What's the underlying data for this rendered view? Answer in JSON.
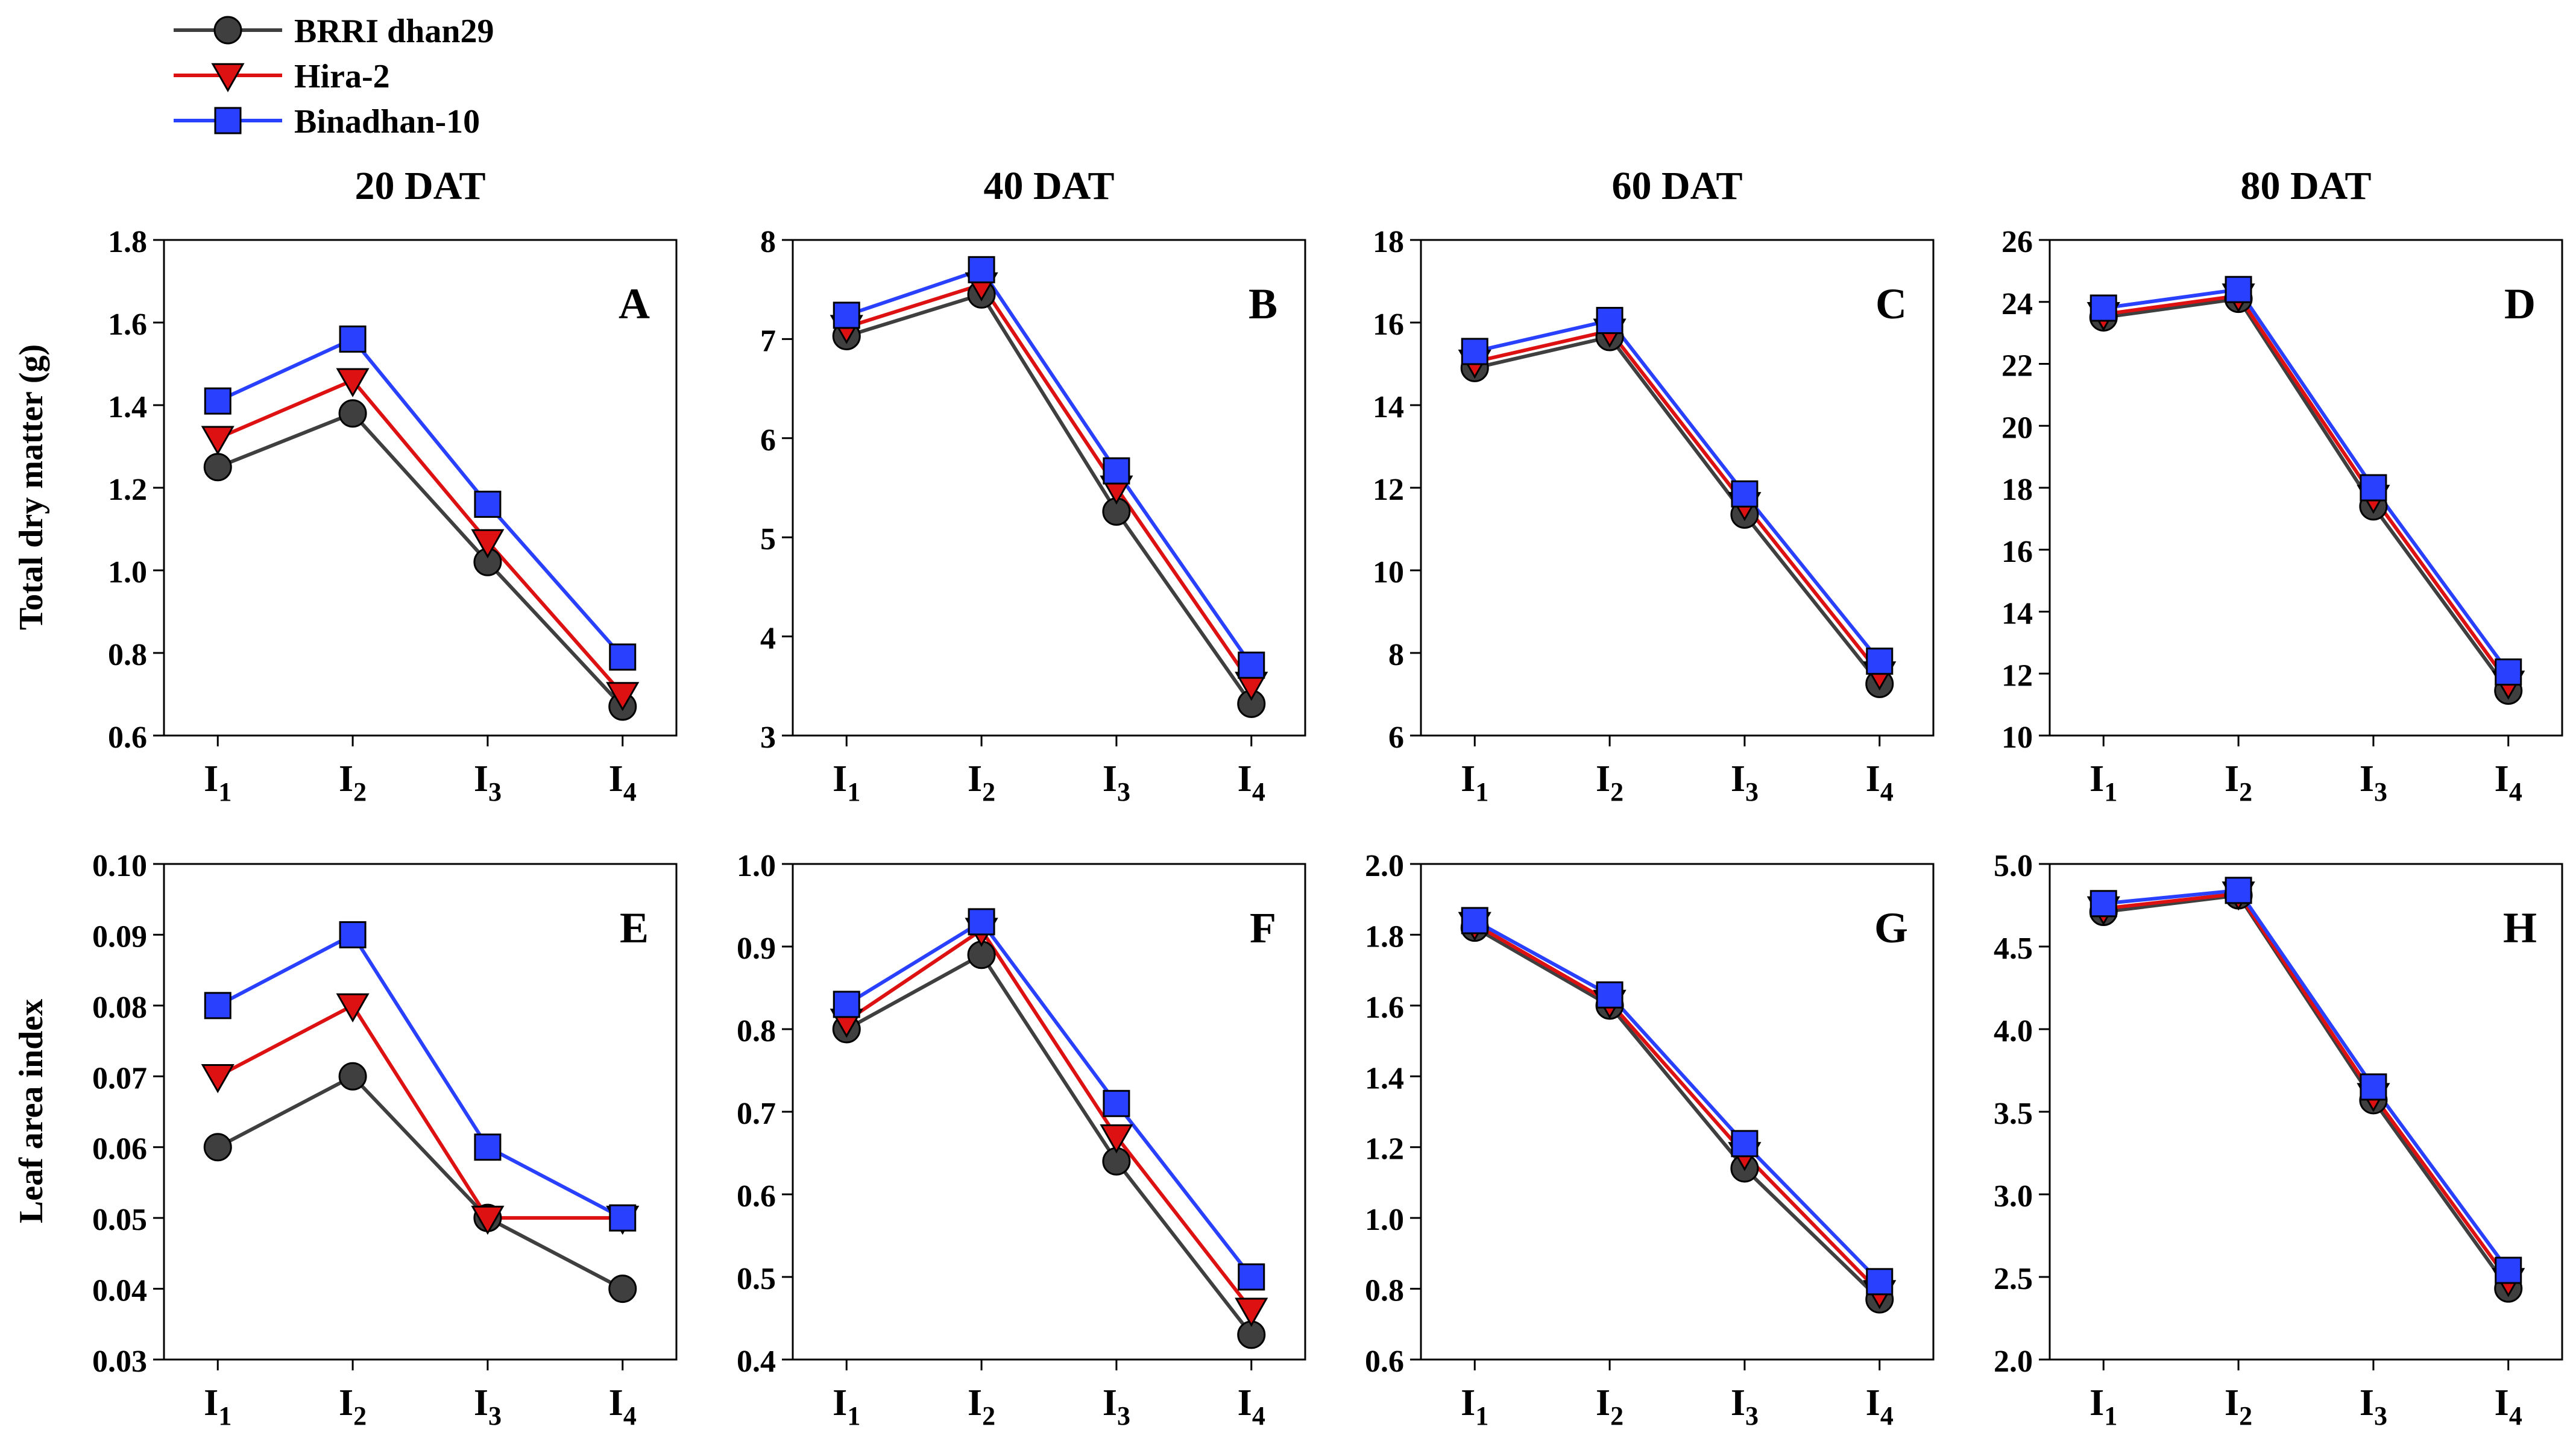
{
  "legend": {
    "entries": [
      {
        "name": "BRRI dhan29",
        "color": "#3f3f3f",
        "marker": "circle"
      },
      {
        "name": "Hira-2",
        "color": "#dd1111",
        "marker": "triangle-down"
      },
      {
        "name": "Binadhan-10",
        "color": "#2a40ff",
        "marker": "square"
      }
    ]
  },
  "column_titles": [
    "20 DAT",
    "40 DAT",
    "60 DAT",
    "80 DAT"
  ],
  "row_ylabels": [
    "Total dry matter (g)",
    "Leaf area index"
  ],
  "x_tick_labels": [
    {
      "base": "I",
      "sub": "1"
    },
    {
      "base": "I",
      "sub": "2"
    },
    {
      "base": "I",
      "sub": "3"
    },
    {
      "base": "I",
      "sub": "4"
    }
  ],
  "chart_data": [
    {
      "type": "line",
      "panel": "A",
      "title": "20 DAT",
      "ylabel": "Total dry matter (g)",
      "categories": [
        "I1",
        "I2",
        "I3",
        "I4"
      ],
      "ylim": [
        0.6,
        1.8
      ],
      "yticks": [
        "0.6",
        "0.8",
        "1.0",
        "1.2",
        "1.4",
        "1.6",
        "1.8"
      ],
      "series": [
        {
          "name": "BRRI dhan29",
          "values": [
            1.25,
            1.38,
            1.02,
            0.67
          ]
        },
        {
          "name": "Hira-2",
          "values": [
            1.32,
            1.46,
            1.07,
            0.7
          ]
        },
        {
          "name": "Binadhan-10",
          "values": [
            1.41,
            1.56,
            1.16,
            0.79
          ]
        }
      ]
    },
    {
      "type": "line",
      "panel": "B",
      "title": "40 DAT",
      "categories": [
        "I1",
        "I2",
        "I3",
        "I4"
      ],
      "ylim": [
        3,
        8
      ],
      "yticks": [
        "3",
        "4",
        "5",
        "6",
        "7",
        "8"
      ],
      "series": [
        {
          "name": "BRRI dhan29",
          "values": [
            7.03,
            7.45,
            5.26,
            3.32
          ]
        },
        {
          "name": "Hira-2",
          "values": [
            7.12,
            7.55,
            5.5,
            3.52
          ]
        },
        {
          "name": "Binadhan-10",
          "values": [
            7.24,
            7.7,
            5.67,
            3.71
          ]
        }
      ]
    },
    {
      "type": "line",
      "panel": "C",
      "title": "60 DAT",
      "categories": [
        "I1",
        "I2",
        "I3",
        "I4"
      ],
      "ylim": [
        6,
        18
      ],
      "yticks": [
        "6",
        "8",
        "10",
        "12",
        "14",
        "16",
        "18"
      ],
      "series": [
        {
          "name": "BRRI dhan29",
          "values": [
            14.9,
            15.65,
            11.35,
            7.25
          ]
        },
        {
          "name": "Hira-2",
          "values": [
            15.05,
            15.8,
            11.6,
            7.5
          ]
        },
        {
          "name": "Binadhan-10",
          "values": [
            15.3,
            16.05,
            11.85,
            7.8
          ]
        }
      ]
    },
    {
      "type": "line",
      "panel": "D",
      "title": "80 DAT",
      "categories": [
        "I1",
        "I2",
        "I3",
        "I4"
      ],
      "ylim": [
        10,
        26
      ],
      "yticks": [
        "10",
        "12",
        "14",
        "16",
        "18",
        "20",
        "22",
        "24",
        "26"
      ],
      "series": [
        {
          "name": "BRRI dhan29",
          "values": [
            23.5,
            24.1,
            17.4,
            11.45
          ]
        },
        {
          "name": "Hira-2",
          "values": [
            23.6,
            24.2,
            17.7,
            11.7
          ]
        },
        {
          "name": "Binadhan-10",
          "values": [
            23.8,
            24.4,
            18.0,
            12.05
          ]
        }
      ]
    },
    {
      "type": "line",
      "panel": "E",
      "ylabel": "Leaf area index",
      "categories": [
        "I1",
        "I2",
        "I3",
        "I4"
      ],
      "ylim": [
        0.03,
        0.1
      ],
      "yticks": [
        "0.03",
        "0.04",
        "0.05",
        "0.06",
        "0.07",
        "0.08",
        "0.09",
        "0.10"
      ],
      "series": [
        {
          "name": "BRRI dhan29",
          "values": [
            0.06,
            0.07,
            0.05,
            0.04
          ]
        },
        {
          "name": "Hira-2",
          "values": [
            0.07,
            0.08,
            0.05,
            0.05
          ]
        },
        {
          "name": "Binadhan-10",
          "values": [
            0.08,
            0.09,
            0.06,
            0.05
          ]
        }
      ]
    },
    {
      "type": "line",
      "panel": "F",
      "categories": [
        "I1",
        "I2",
        "I3",
        "I4"
      ],
      "ylim": [
        0.4,
        1.0
      ],
      "yticks": [
        "0.4",
        "0.5",
        "0.6",
        "0.7",
        "0.8",
        "0.9",
        "1.0"
      ],
      "series": [
        {
          "name": "BRRI dhan29",
          "values": [
            0.8,
            0.89,
            0.64,
            0.43
          ]
        },
        {
          "name": "Hira-2",
          "values": [
            0.81,
            0.92,
            0.67,
            0.46
          ]
        },
        {
          "name": "Binadhan-10",
          "values": [
            0.83,
            0.93,
            0.71,
            0.5
          ]
        }
      ]
    },
    {
      "type": "line",
      "panel": "G",
      "categories": [
        "I1",
        "I2",
        "I3",
        "I4"
      ],
      "ylim": [
        0.6,
        2.0
      ],
      "yticks": [
        "0.6",
        "0.8",
        "1.0",
        "1.2",
        "1.4",
        "1.6",
        "1.8",
        "2.0"
      ],
      "series": [
        {
          "name": "BRRI dhan29",
          "values": [
            1.82,
            1.6,
            1.14,
            0.77
          ]
        },
        {
          "name": "Hira-2",
          "values": [
            1.83,
            1.61,
            1.18,
            0.79
          ]
        },
        {
          "name": "Binadhan-10",
          "values": [
            1.84,
            1.63,
            1.21,
            0.82
          ]
        }
      ]
    },
    {
      "type": "line",
      "panel": "H",
      "categories": [
        "I1",
        "I2",
        "I3",
        "I4"
      ],
      "ylim": [
        2.0,
        5.0
      ],
      "yticks": [
        "2.0",
        "2.5",
        "3.0",
        "3.5",
        "4.0",
        "4.5",
        "5.0"
      ],
      "series": [
        {
          "name": "BRRI dhan29",
          "values": [
            4.71,
            4.81,
            3.57,
            2.43
          ]
        },
        {
          "name": "Hira-2",
          "values": [
            4.73,
            4.82,
            3.6,
            2.48
          ]
        },
        {
          "name": "Binadhan-10",
          "values": [
            4.76,
            4.84,
            3.65,
            2.54
          ]
        }
      ]
    }
  ]
}
